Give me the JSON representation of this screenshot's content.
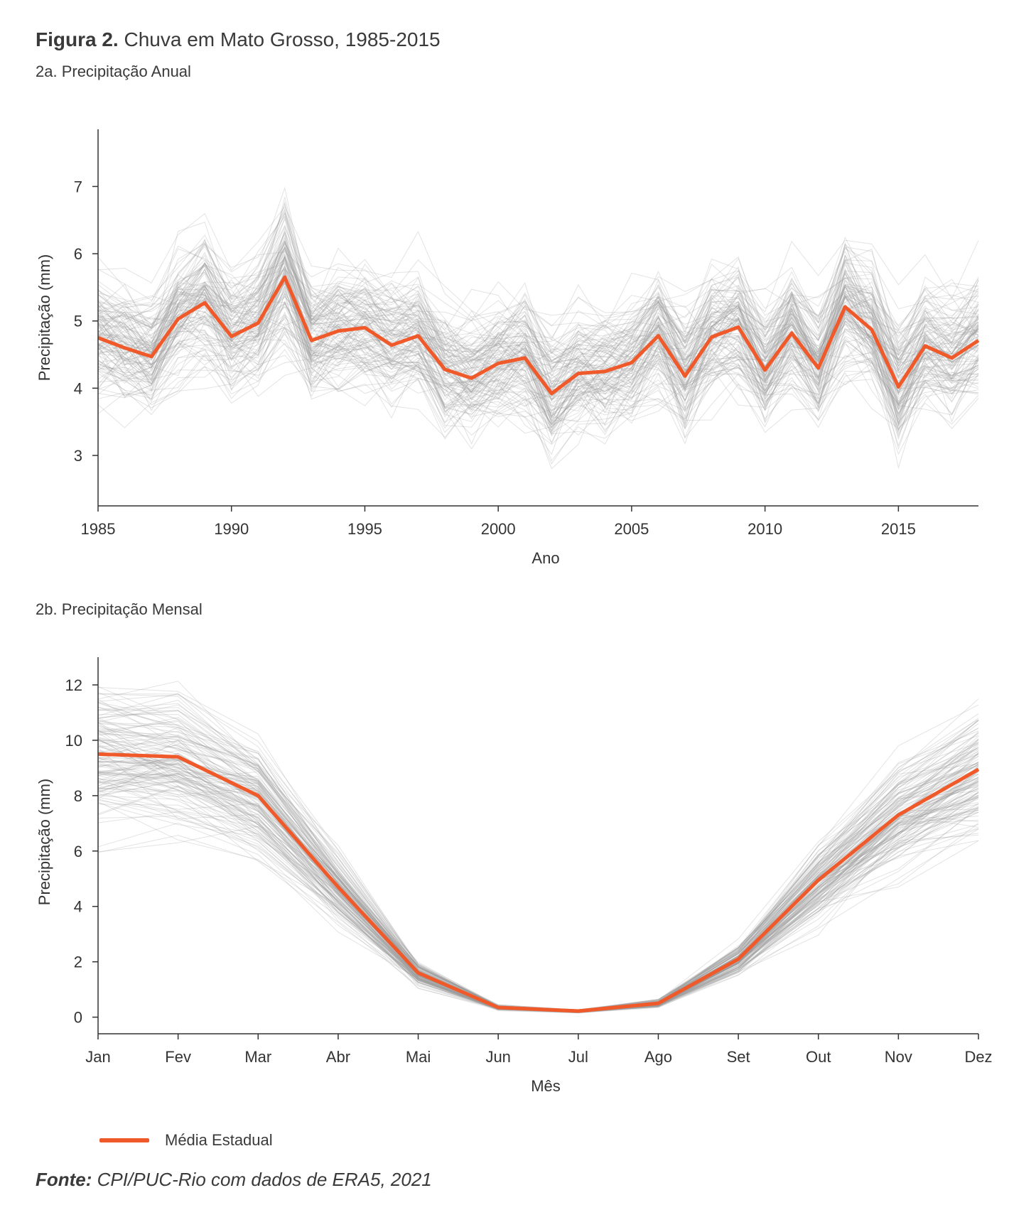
{
  "figure": {
    "title_bold": "Figura 2.",
    "title_rest": "Chuva em Mato Grosso, 1985-2015",
    "legend_label": "Média Estadual",
    "source_bold": "Fonte:",
    "source_rest": "CPI/PUC-Rio com dados de ERA5, 2021"
  },
  "colors": {
    "state_mean": "#f05a2b",
    "municipalities": "#9a9a9a"
  },
  "chart_data": [
    {
      "type": "line",
      "subtitle": "2a. Precipitação Anual",
      "xlabel": "Ano",
      "ylabel": "Precipitação (mm)",
      "xlim": [
        1985,
        2018
      ],
      "ylim": [
        2.25,
        7.85
      ],
      "xticks": [
        1985,
        1990,
        1995,
        2000,
        2005,
        2010,
        2015
      ],
      "yticks": [
        3,
        4,
        5,
        6,
        7
      ],
      "grid": false,
      "x": [
        1985,
        1986,
        1987,
        1988,
        1989,
        1990,
        1991,
        1992,
        1993,
        1994,
        1995,
        1996,
        1997,
        1998,
        1999,
        2000,
        2001,
        2002,
        2003,
        2004,
        2005,
        2006,
        2007,
        2008,
        2009,
        2010,
        2011,
        2012,
        2013,
        2014,
        2015,
        2016,
        2017,
        2018
      ],
      "series": [
        {
          "name": "Média Estadual",
          "values": [
            4.75,
            4.6,
            4.47,
            5.03,
            5.27,
            4.77,
            4.97,
            5.65,
            4.71,
            4.85,
            4.9,
            4.64,
            4.78,
            4.28,
            4.15,
            4.37,
            4.45,
            3.92,
            4.22,
            4.25,
            4.38,
            4.78,
            4.18,
            4.76,
            4.91,
            4.27,
            4.82,
            4.3,
            5.21,
            4.87,
            4.02,
            4.63,
            4.45,
            4.71
          ]
        }
      ]
    },
    {
      "type": "line",
      "subtitle": "2b. Precipitação Mensal",
      "xlabel": "Mês",
      "ylabel": "Precipitação (mm)",
      "ylim": [
        -0.6,
        13
      ],
      "yticks": [
        0,
        2,
        4,
        6,
        8,
        10,
        12
      ],
      "grid": false,
      "categories": [
        "Jan",
        "Fev",
        "Mar",
        "Abr",
        "Mai",
        "Jun",
        "Jul",
        "Ago",
        "Set",
        "Out",
        "Nov",
        "Dez"
      ],
      "series": [
        {
          "name": "Média Estadual",
          "values": [
            9.5,
            9.4,
            8.0,
            4.7,
            1.6,
            0.35,
            0.22,
            0.5,
            2.1,
            4.95,
            7.3,
            8.95
          ]
        }
      ]
    }
  ]
}
